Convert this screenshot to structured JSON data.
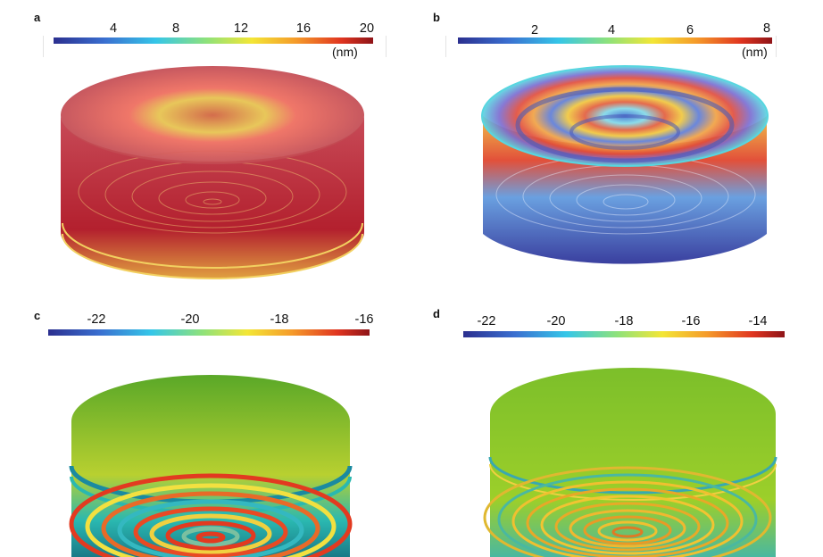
{
  "panels": [
    {
      "label": "a",
      "colorbar": {
        "ticks": [
          "4",
          "8",
          "12",
          "16",
          "20"
        ],
        "unit": "(nm)"
      },
      "colors": {
        "top": "#c9545a",
        "side": "#b8202c",
        "center": "#e8d34a"
      }
    },
    {
      "label": "b",
      "colorbar": {
        "ticks": [
          "2",
          "4",
          "6",
          "8"
        ],
        "unit": "(nm)"
      },
      "colors": {
        "top": "#e8a04a",
        "side": "#4a63b8",
        "rim": "#58d6e0"
      }
    },
    {
      "label": "c",
      "colorbar": {
        "ticks": [
          "-22",
          "-20",
          "-18",
          "-16"
        ],
        "unit": ""
      },
      "colors": {
        "top": "#e05030",
        "side": "#7abf2a",
        "band": "#2ab8b0"
      }
    },
    {
      "label": "d",
      "colorbar": {
        "ticks": [
          "-22",
          "-20",
          "-18",
          "-16",
          "-14"
        ],
        "unit": ""
      },
      "colors": {
        "top": "#e8b428",
        "side": "#8ac22a",
        "band": "#4ac0a8"
      }
    }
  ],
  "colormap": [
    "#2b2f8f",
    "#3a6fd0",
    "#35c6e8",
    "#8fe27a",
    "#f3e636",
    "#f59a2a",
    "#e03520",
    "#8e1418"
  ]
}
